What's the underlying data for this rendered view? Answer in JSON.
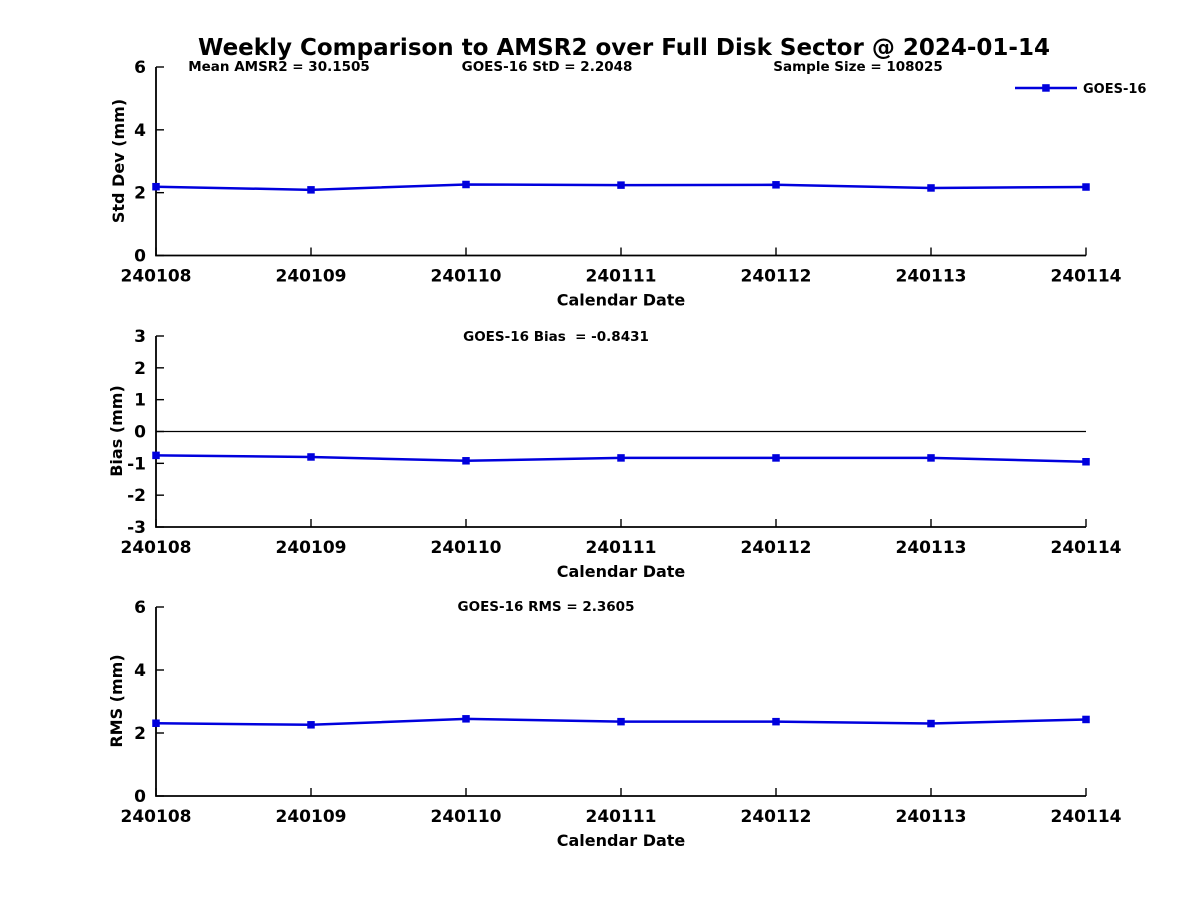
{
  "title": "Weekly Comparison to AMSR2 over Full Disk Sector @ 2024-01-14",
  "legend": {
    "label": "GOES-16",
    "color": "#0000dd"
  },
  "chart_data": [
    {
      "type": "line",
      "annotations": [
        "Mean AMSR2 = 30.1505",
        "GOES-16 StD = 2.2048",
        "Sample Size = 108025"
      ],
      "categories": [
        "240108",
        "240109",
        "240110",
        "240111",
        "240112",
        "240113",
        "240114"
      ],
      "series": [
        {
          "name": "GOES-16",
          "values": [
            2.19,
            2.09,
            2.26,
            2.24,
            2.25,
            2.15,
            2.18
          ]
        }
      ],
      "xlabel": "Calendar Date",
      "ylabel": "Std Dev (mm)",
      "ylim": [
        0,
        6
      ],
      "yticks": [
        0,
        2,
        4,
        6
      ],
      "zero_line": false,
      "legend_position": "top-right",
      "grid": false
    },
    {
      "type": "line",
      "annotations": [
        "GOES-16 Bias  = -0.8431"
      ],
      "categories": [
        "240108",
        "240109",
        "240110",
        "240111",
        "240112",
        "240113",
        "240114"
      ],
      "series": [
        {
          "name": "GOES-16",
          "values": [
            -0.75,
            -0.8,
            -0.92,
            -0.83,
            -0.83,
            -0.83,
            -0.95
          ]
        }
      ],
      "xlabel": "Calendar Date",
      "ylabel": "Bias (mm)",
      "ylim": [
        -3,
        3
      ],
      "yticks": [
        -3,
        -2,
        -1,
        0,
        1,
        2,
        3
      ],
      "zero_line": true,
      "grid": false
    },
    {
      "type": "line",
      "annotations": [
        "GOES-16 RMS = 2.3605"
      ],
      "categories": [
        "240108",
        "240109",
        "240110",
        "240111",
        "240112",
        "240113",
        "240114"
      ],
      "series": [
        {
          "name": "GOES-16",
          "values": [
            2.31,
            2.26,
            2.45,
            2.36,
            2.36,
            2.3,
            2.43
          ]
        }
      ],
      "xlabel": "Calendar Date",
      "ylabel": "RMS (mm)",
      "ylim": [
        0,
        6
      ],
      "yticks": [
        0,
        2,
        4,
        6
      ],
      "zero_line": false,
      "grid": false
    }
  ]
}
